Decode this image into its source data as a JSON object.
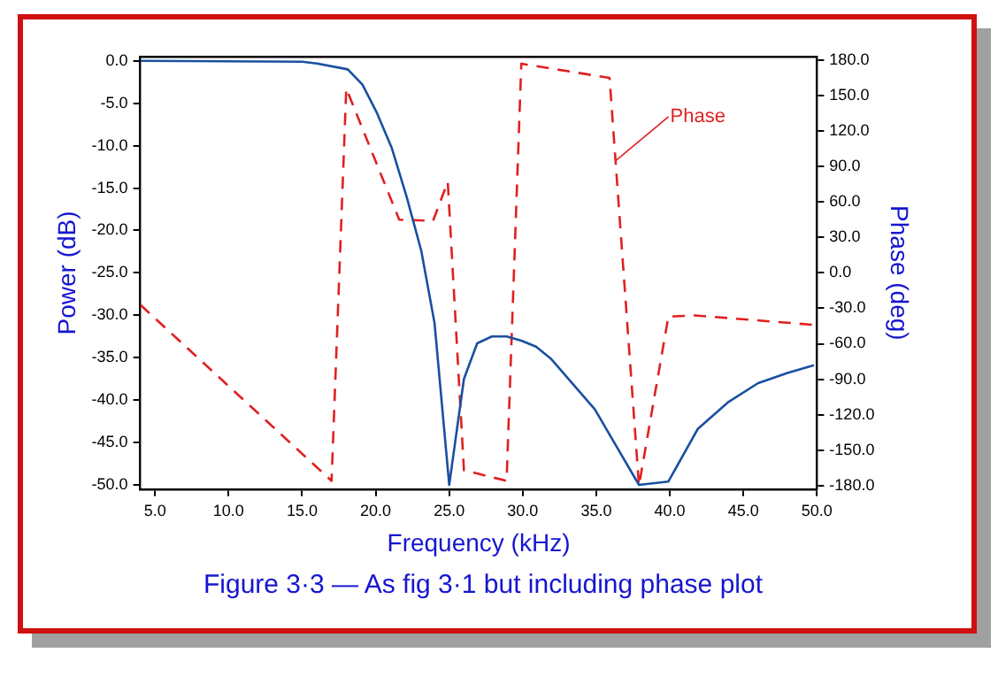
{
  "chart_data": {
    "type": "line",
    "title": "Figure 3·3 — As fig 3·1 but including phase plot",
    "xlabel": "Frequency (kHz)",
    "ylabel": "Power (dB)",
    "y2label": "Phase (deg)",
    "xlim": [
      4.0,
      50.0
    ],
    "xticks": [
      {
        "value": 5,
        "label": "5.0"
      },
      {
        "value": 10,
        "label": "10.0"
      },
      {
        "value": 15,
        "label": "15.0"
      },
      {
        "value": 20,
        "label": "20.0"
      },
      {
        "value": 25,
        "label": "25.0"
      },
      {
        "value": 30,
        "label": "30.0"
      },
      {
        "value": 35,
        "label": "35.0"
      },
      {
        "value": 40,
        "label": "40.0"
      },
      {
        "value": 45,
        "label": "45.0"
      },
      {
        "value": 50,
        "label": "50.0"
      }
    ],
    "ylim": [
      -50.5,
      0.5
    ],
    "yticks": [
      {
        "value": 0,
        "label": "0.0"
      },
      {
        "value": -5,
        "label": "-5.0"
      },
      {
        "value": -10,
        "label": "-10.0"
      },
      {
        "value": -15,
        "label": "-15.0"
      },
      {
        "value": -20,
        "label": "-20.0"
      },
      {
        "value": -25,
        "label": "-25.0"
      },
      {
        "value": -30,
        "label": "-30.0"
      },
      {
        "value": -35,
        "label": "-35.0"
      },
      {
        "value": -40,
        "label": "-40.0"
      },
      {
        "value": -45,
        "label": "-45.0"
      },
      {
        "value": -50,
        "label": "-50.0"
      }
    ],
    "y2lim": [
      -183,
      183
    ],
    "y2ticks": [
      {
        "value": 180,
        "label": "180.0"
      },
      {
        "value": 150,
        "label": "150.0"
      },
      {
        "value": 120,
        "label": "120.0"
      },
      {
        "value": 90,
        "label": "90.0"
      },
      {
        "value": 60,
        "label": "60.0"
      },
      {
        "value": 30,
        "label": "30.0"
      },
      {
        "value": 0,
        "label": "0.0"
      },
      {
        "value": -30,
        "label": "-30.0"
      },
      {
        "value": -60,
        "label": "-60.0"
      },
      {
        "value": -90,
        "label": "-90.0"
      },
      {
        "value": -120,
        "label": "-120.0"
      },
      {
        "value": -150,
        "label": "-150.0"
      },
      {
        "value": -180,
        "label": "-180.0"
      }
    ],
    "series": [
      {
        "color": "#1a4fa0",
        "line_style": "solid",
        "x": [
          4,
          15,
          16,
          18.1,
          19.1,
          20.1,
          21.1,
          22.1,
          23.1,
          24,
          25,
          26,
          26.9,
          27.9,
          28.9,
          29.9,
          30.9,
          31.9,
          34.9,
          37.9,
          39.9,
          41.9,
          44,
          46,
          48,
          49.8
        ],
        "values": [
          0,
          -0.1,
          -0.3,
          -1,
          -2.8,
          -6.2,
          -10.3,
          -16,
          -22.4,
          -30.9,
          -50,
          -37.5,
          -33.3,
          -32.5,
          -32.5,
          -33,
          -33.7,
          -35.1,
          -41.1,
          -50,
          -49.6,
          -43.4,
          -40.2,
          -38,
          -36.8,
          -35.9
        ]
      },
      {
        "color": "#e02020",
        "line_style": "dashed",
        "axis": "y2",
        "x": [
          4,
          17,
          18,
          21.6,
          23.9,
          24.9,
          26,
          28.9,
          29.9,
          35.9,
          37.9,
          39.9,
          41.7,
          49.8
        ],
        "values": [
          -27,
          -176,
          156,
          45,
          44,
          77,
          -167,
          -176,
          177,
          165,
          -180,
          -37,
          -36,
          -44
        ]
      }
    ],
    "annotations": [
      {
        "text": "Phase",
        "x": 36.3,
        "y": -11.8
      }
    ],
    "grid": false,
    "legend": false,
    "marker": "none"
  }
}
